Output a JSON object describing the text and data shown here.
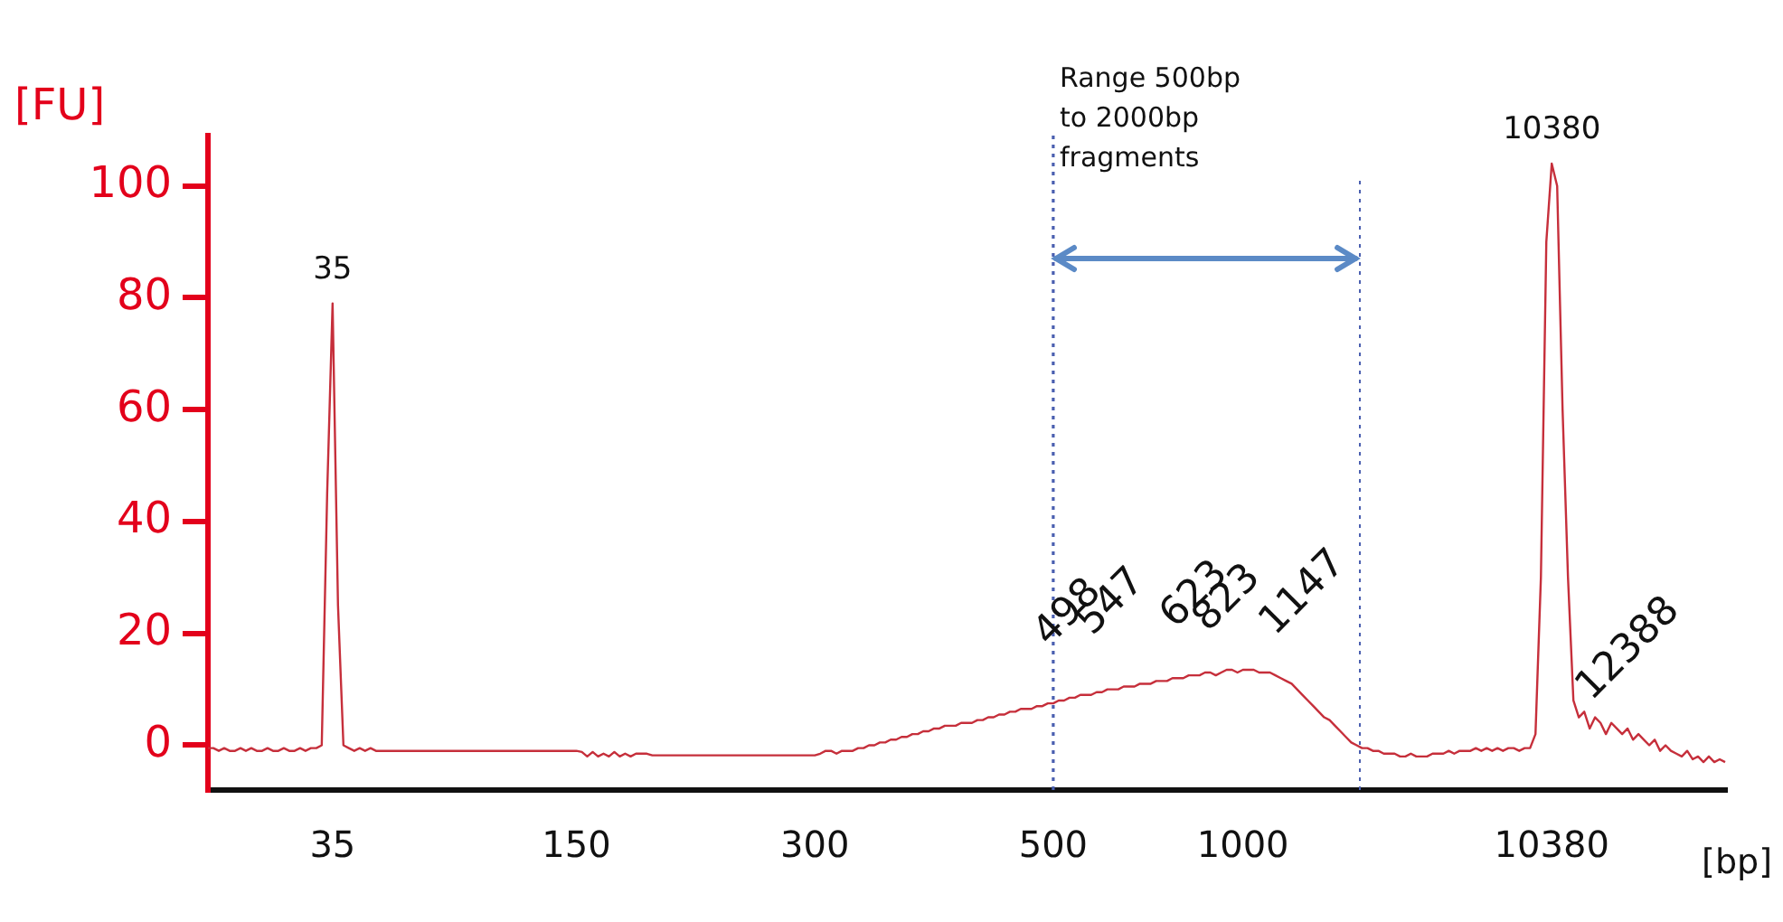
{
  "chart_data": {
    "type": "line",
    "xlabel": "[bp]",
    "ylabel": "[FU]",
    "categories": [
      null,
      null,
      null,
      null,
      null,
      null,
      null,
      null,
      null,
      null,
      null,
      null,
      null,
      null,
      null,
      null,
      null,
      null,
      null,
      null,
      null,
      null,
      null,
      "35",
      null,
      null,
      null,
      null,
      null,
      null,
      null,
      null,
      null,
      null,
      null,
      null,
      null,
      null,
      null,
      null,
      null,
      null,
      null,
      null,
      null,
      null,
      null,
      null,
      null,
      null,
      null,
      null,
      null,
      null,
      null,
      null,
      null,
      null,
      null,
      null,
      null,
      null,
      null,
      null,
      null,
      null,
      null,
      null,
      "150",
      null,
      null,
      null,
      null,
      null,
      null,
      null,
      null,
      null,
      null,
      null,
      null,
      null,
      null,
      null,
      null,
      null,
      null,
      null,
      null,
      null,
      null,
      null,
      null,
      null,
      null,
      null,
      null,
      null,
      null,
      null,
      null,
      null,
      null,
      null,
      null,
      null,
      null,
      null,
      null,
      null,
      null,
      null,
      "300",
      null,
      null,
      null,
      null,
      null,
      null,
      null,
      null,
      null,
      null,
      null,
      null,
      null,
      null,
      null,
      null,
      null,
      null,
      null,
      null,
      null,
      null,
      null,
      null,
      null,
      null,
      null,
      null,
      null,
      null,
      null,
      null,
      null,
      null,
      null,
      null,
      null,
      null,
      null,
      null,
      null,
      null,
      null,
      "500",
      null,
      null,
      null,
      null,
      null,
      null,
      null,
      null,
      null,
      null,
      null,
      null,
      null,
      null,
      null,
      null,
      null,
      null,
      null,
      null,
      null,
      null,
      null,
      null,
      null,
      null,
      null,
      null,
      null,
      null,
      null,
      null,
      null,
      null,
      "1000",
      null,
      null,
      null,
      null,
      null,
      null,
      null,
      null,
      null,
      null,
      null,
      null,
      null,
      null,
      null,
      null,
      null,
      null,
      null,
      null,
      null,
      null,
      null,
      null,
      null,
      null,
      null,
      null,
      null,
      null,
      null,
      null,
      null,
      null,
      null,
      null,
      null,
      null,
      null,
      null,
      null,
      null,
      null,
      null,
      null,
      null,
      null,
      null,
      null,
      null,
      null,
      null,
      null,
      null,
      null,
      null,
      "10380",
      null,
      null,
      null,
      null,
      null,
      null,
      null,
      null,
      null,
      null,
      null,
      null,
      null,
      null,
      null,
      null,
      null,
      null,
      null,
      null,
      null,
      null,
      null,
      null,
      null,
      null,
      null,
      null,
      null,
      null,
      null,
      null
    ],
    "series": [
      {
        "color": "#c62f3b",
        "values": [
          -0.5,
          -0.5,
          -1,
          -0.5,
          -1,
          -1,
          -0.5,
          -1,
          -0.5,
          -1,
          -1,
          -0.5,
          -1,
          -1,
          -0.5,
          -1,
          -1,
          -0.5,
          -1,
          -0.5,
          -0.5,
          0,
          45,
          79,
          25,
          0,
          -0.5,
          -1,
          -0.5,
          -1,
          -0.5,
          -1,
          -1,
          -1,
          -1,
          -1,
          -1,
          -1,
          -1,
          -1,
          -1,
          -1,
          -1,
          -1,
          -1,
          -1,
          -1,
          -1,
          -1,
          -1,
          -1,
          -1,
          -1,
          -1,
          -1,
          -1,
          -1,
          -1,
          -1,
          -1,
          -1,
          -1,
          -1,
          -1,
          -1,
          -1,
          -1,
          -1,
          -1,
          -1.2,
          -2,
          -1.2,
          -2,
          -1.5,
          -2,
          -1.2,
          -2,
          -1.5,
          -2,
          -1.5,
          -1.5,
          -1.5,
          -1.8,
          -1.8,
          -1.8,
          -1.8,
          -1.8,
          -1.8,
          -1.8,
          -1.8,
          -1.8,
          -1.8,
          -1.8,
          -1.8,
          -1.8,
          -1.8,
          -1.8,
          -1.8,
          -1.8,
          -1.8,
          -1.8,
          -1.8,
          -1.8,
          -1.8,
          -1.8,
          -1.8,
          -1.8,
          -1.8,
          -1.8,
          -1.8,
          -1.8,
          -1.8,
          -1.8,
          -1.5,
          -1,
          -1,
          -1.5,
          -1,
          -1,
          -1,
          -0.5,
          -0.5,
          0,
          0,
          0.5,
          0.5,
          1,
          1,
          1.5,
          1.5,
          2,
          2,
          2.5,
          2.5,
          3,
          3,
          3.5,
          3.5,
          3.5,
          4,
          4,
          4,
          4.5,
          4.5,
          5,
          5,
          5.5,
          5.5,
          6,
          6,
          6.5,
          6.5,
          6.5,
          7,
          7,
          7.5,
          7.5,
          8,
          8,
          8.5,
          8.5,
          9,
          9,
          9,
          9.5,
          9.5,
          10,
          10,
          10,
          10.5,
          10.5,
          10.5,
          11,
          11,
          11,
          11.5,
          11.5,
          11.5,
          12,
          12,
          12,
          12.5,
          12.5,
          12.5,
          13,
          13,
          12.5,
          13,
          13.5,
          13.5,
          13,
          13.5,
          13.5,
          13.5,
          13,
          13,
          13,
          12.5,
          12,
          11.5,
          11,
          10,
          9,
          8,
          7,
          6,
          5,
          4.5,
          3.5,
          2.5,
          1.5,
          0.5,
          0,
          -0.5,
          -0.5,
          -1,
          -1,
          -1.5,
          -1.5,
          -1.5,
          -2,
          -2,
          -1.5,
          -2,
          -2,
          -2,
          -1.5,
          -1.5,
          -1.5,
          -1,
          -1.5,
          -1,
          -1,
          -1,
          -0.5,
          -1,
          -0.5,
          -1,
          -0.5,
          -1,
          -0.5,
          -0.5,
          -1,
          -0.5,
          -0.5,
          2,
          30,
          90,
          104,
          100,
          60,
          30,
          8,
          5,
          6,
          3,
          5,
          4,
          2,
          4,
          3,
          2,
          3,
          1,
          2,
          1,
          0,
          1,
          -1,
          0,
          -1,
          -1.5,
          -2,
          -1,
          -2.5,
          -2,
          -3,
          -2,
          -3,
          -2.5,
          -3
        ]
      }
    ],
    "ylim": [
      -8,
      109
    ],
    "yticks": [
      0,
      20,
      40,
      60,
      80,
      100
    ],
    "grid": false,
    "legend": false,
    "marker": "none",
    "line_style": "solid",
    "ref_lines": [
      {
        "axis": "x",
        "value": "500",
        "color": "#4a5fb0",
        "line_style": "dotted"
      }
    ],
    "annotations": [
      {
        "text": "35",
        "x": "35",
        "y": 79
      },
      {
        "text": "10380",
        "x": "10380",
        "y": 104
      },
      "Range 500bp to 2000bp fragments",
      "498",
      "547",
      "623",
      "823",
      "1147",
      "12388"
    ]
  }
}
